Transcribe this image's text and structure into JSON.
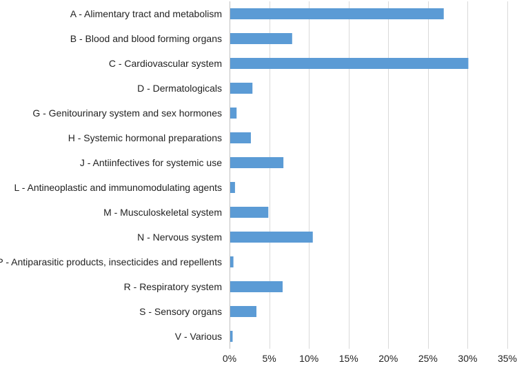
{
  "chart_data": {
    "type": "bar",
    "orientation": "horizontal",
    "title": "",
    "xlabel": "",
    "ylabel": "",
    "xlim": [
      0,
      35
    ],
    "grid": true,
    "legend": "none",
    "bar_color": "#5b9bd5",
    "grid_color": "#d9d9d9",
    "x_ticks": [
      0,
      5,
      10,
      15,
      20,
      25,
      30,
      35
    ],
    "x_tick_labels": [
      "0%",
      "5%",
      "10%",
      "15%",
      "20%",
      "25%",
      "30%",
      "35%"
    ],
    "categories": [
      "A - Alimentary tract and metabolism",
      "B - Blood and blood forming organs",
      "C - Cardiovascular system",
      "D - Dermatologicals",
      "G - Genitourinary system and sex hormones",
      "H - Systemic hormonal preparations",
      "J - Antiinfectives for systemic use",
      "L - Antineoplastic and immunomodulating agents",
      "M - Musculoskeletal system",
      "N - Nervous system",
      "P - Antiparasitic products, insecticides and repellents",
      "R - Respiratory system",
      "S - Sensory organs",
      "V - Various"
    ],
    "values": [
      26.9,
      7.8,
      30.0,
      2.8,
      0.8,
      2.6,
      6.7,
      0.6,
      4.8,
      10.4,
      0.4,
      6.6,
      3.3,
      0.3
    ]
  }
}
